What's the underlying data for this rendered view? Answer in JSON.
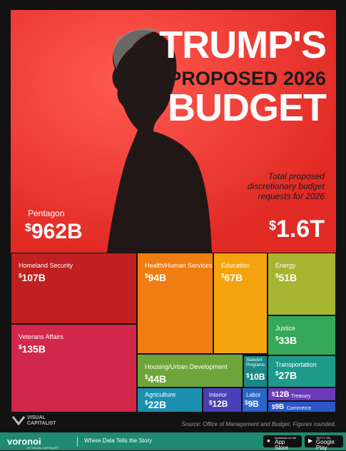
{
  "title": {
    "line1": "TRUMP'S",
    "line2": "PROPOSED 2026",
    "line3": "BUDGET"
  },
  "total": {
    "label": "Total proposed discretionary budget requests for 2026",
    "currency": "$",
    "value": "1.6T"
  },
  "pentagon": {
    "label": "Pentagon",
    "currency": "$",
    "value": "962B"
  },
  "departments": [
    {
      "name": "Homeland Security",
      "currency": "$",
      "value": "107B",
      "color": "#c0201f"
    },
    {
      "name": "Veterans Affairs",
      "currency": "$",
      "value": "135B",
      "color": "#d1274a"
    },
    {
      "name": "Health/Human Services",
      "currency": "$",
      "value": "94B",
      "color": "#f07d12"
    },
    {
      "name": "Education",
      "currency": "$",
      "value": "67B",
      "color": "#f5a20f"
    },
    {
      "name": "Energy",
      "currency": "$",
      "value": "51B",
      "color": "#a6b531"
    },
    {
      "name": "Justice",
      "currency": "$",
      "value": "33B",
      "color": "#35a85a"
    },
    {
      "name": "Housing/Urban Development",
      "currency": "$",
      "value": "44B",
      "color": "#6ea53b"
    },
    {
      "name": "State/Int Programs",
      "currency": "$",
      "value": "10B",
      "color": "#1b8a86"
    },
    {
      "name": "Transportation",
      "currency": "$",
      "value": "27B",
      "color": "#1d9a8a"
    },
    {
      "name": "Agriculture",
      "currency": "$",
      "value": "22B",
      "color": "#1b8fb0"
    },
    {
      "name": "Interior",
      "currency": "$",
      "value": "12B",
      "color": "#4a3fb5"
    },
    {
      "name": "Labor",
      "currency": "$",
      "value": "9B",
      "color": "#2a66c9"
    },
    {
      "name": "Treasury",
      "currency": "$",
      "value": "12B",
      "color": "#6b3ab8"
    },
    {
      "name": "Commerce",
      "currency": "$",
      "value": "9B",
      "color": "#2b57c8"
    }
  ],
  "source": "Source: Office of Management and Budget. Figures rounded.",
  "footer": {
    "publisher_top": "VISUAL",
    "publisher_bottom": "CAPITALIST",
    "brand": "voronoi",
    "brand_sub": "BY VISUAL CAPITALIST",
    "tagline": "Where Data Tells the Story",
    "appstore_small": "Download on the",
    "appstore": "App Store",
    "googleplay_small": "GET IT ON",
    "googleplay": "Google Play"
  },
  "colors": {
    "hero": "#f0302a",
    "footer": "#1f8a73"
  }
}
